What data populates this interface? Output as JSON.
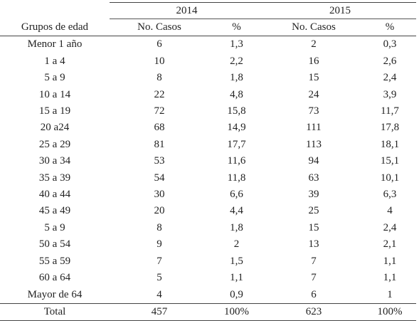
{
  "table": {
    "years": [
      "2014",
      "2015"
    ],
    "headers": [
      "Grupos de edad",
      "No. Casos",
      "%",
      "No. Casos",
      "%"
    ],
    "rows": [
      [
        "Menor 1 año",
        "6",
        "1,3",
        "2",
        "0,3"
      ],
      [
        "1 a 4",
        "10",
        "2,2",
        "16",
        "2,6"
      ],
      [
        "5 a 9",
        "8",
        "1,8",
        "15",
        "2,4"
      ],
      [
        "10 a 14",
        "22",
        "4,8",
        "24",
        "3,9"
      ],
      [
        "15 a 19",
        "72",
        "15,8",
        "73",
        "11,7"
      ],
      [
        "20 a24",
        "68",
        "14,9",
        "111",
        "17,8"
      ],
      [
        "25 a 29",
        "81",
        "17,7",
        "113",
        "18,1"
      ],
      [
        "30 a 34",
        "53",
        "11,6",
        "94",
        "15,1"
      ],
      [
        "35 a 39",
        "54",
        "11,8",
        "63",
        "10,1"
      ],
      [
        "40 a 44",
        "30",
        "6,6",
        "39",
        "6,3"
      ],
      [
        "45 a 49",
        "20",
        "4,4",
        "25",
        "4"
      ],
      [
        "5 a 9",
        "8",
        "1,8",
        "15",
        "2,4"
      ],
      [
        "50 a 54",
        "9",
        "2",
        "13",
        "2,1"
      ],
      [
        "55 a 59",
        "7",
        "1,5",
        "7",
        "1,1"
      ],
      [
        "60 a 64",
        "5",
        "1,1",
        "7",
        "1,1"
      ],
      [
        "Mayor de 64",
        "4",
        "0,9",
        "6",
        "1"
      ]
    ],
    "total": [
      "Total",
      "457",
      "100%",
      "623",
      "100%"
    ]
  }
}
